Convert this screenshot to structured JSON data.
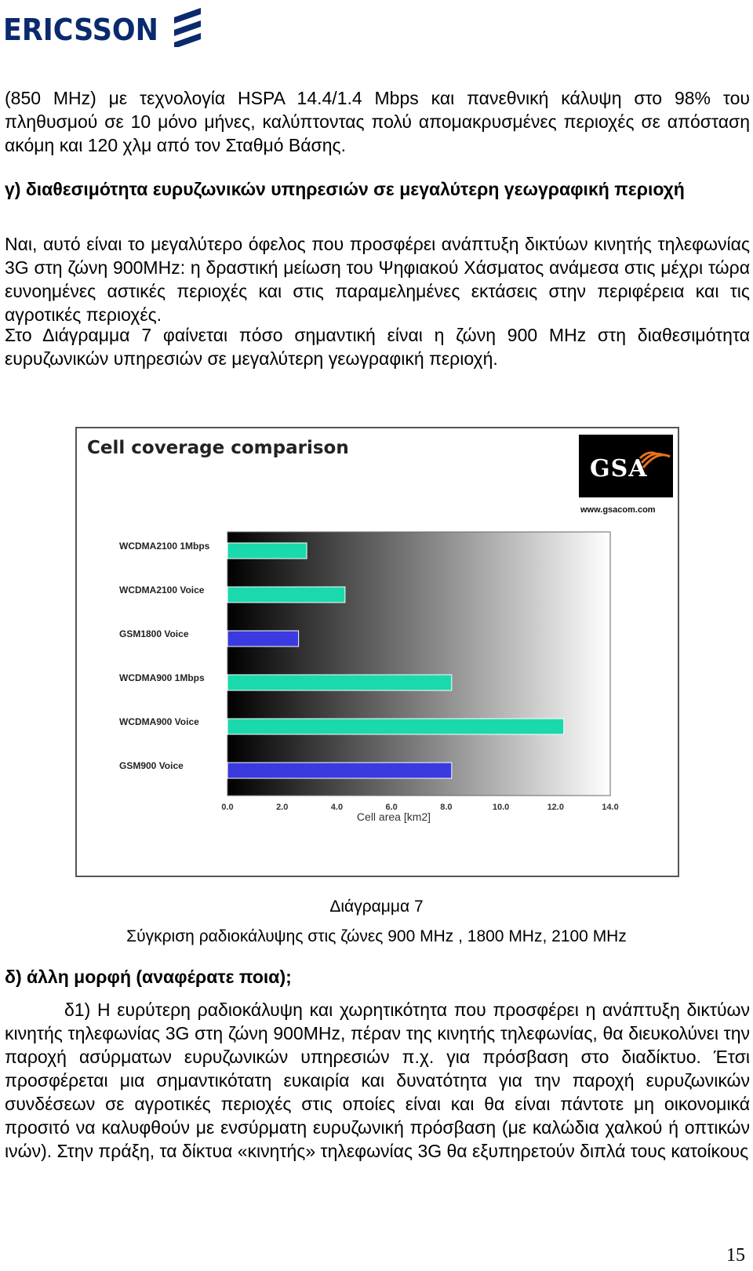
{
  "header": {
    "logo_text": "ERICSSON"
  },
  "paragraph1": "(850 MHz) με τεχνολογία HSPA 14.4/1.4 Mbps και πανεθνική κάλυψη στο 98% του πληθυσμού σε 10 μόνο μήνες, καλύπτοντας πολύ απομακρυσμένες περιοχές σε απόσταση ακόμη και 120 χλμ από τον Σταθμό Βάσης.",
  "heading_c": "γ) διαθεσιμότητα ευρυζωνικών υπηρεσιών σε μεγαλύτερη γεωγραφική περιοχή",
  "paragraph2": "Ναι, αυτό είναι το μεγαλύτερο όφελος που προσφέρει ανάπτυξη δικτύων κινητής τηλεφωνίας 3G στη ζώνη 900MHz: η δραστική μείωση του Ψηφιακού Χάσματος ανάμεσα στις μέχρι τώρα ευνοημένες αστικές περιοχές και στις παραμελημένες εκτάσεις στην περιφέρεια και τις αγροτικές περιοχές.",
  "paragraph3": "Στο Διάγραμμα 7 φαίνεται πόσο σημαντική είναι η ζώνη 900 MHz στη διαθεσιμότητα ευρυζωνικών υπηρεσιών σε μεγαλύτερη γεωγραφική περιοχή.",
  "figure": {
    "gsa_logo": "GSA",
    "gsa_url": "www.gsacom.com",
    "caption_number": "Διάγραμμα 7",
    "caption_text": "Σύγκριση ραδιοκάλυψης στις ζώνες 900 MHz , 1800 MHz, 2100 MHz"
  },
  "chart_data": {
    "type": "bar",
    "orientation": "horizontal",
    "title": "Cell coverage comparison",
    "xlabel": "Cell area [km2]",
    "ylabel": "",
    "xlim": [
      0,
      14
    ],
    "x_ticks": [
      "0.0",
      "2.0",
      "4.0",
      "6.0",
      "8.0",
      "10.0",
      "12.0",
      "14.0"
    ],
    "categories": [
      "WCDMA2100 1Mbps",
      "WCDMA2100 Voice",
      "GSM1800 Voice",
      "WCDMA900 1Mbps",
      "WCDMA900 Voice",
      "GSM900 Voice"
    ],
    "values": [
      2.9,
      4.3,
      2.6,
      8.2,
      12.3,
      8.2
    ],
    "bar_colors": [
      "#1ad9ac",
      "#1ad9ac",
      "#3a3ae0",
      "#1ad9ac",
      "#1ad9ac",
      "#3a3ae0"
    ],
    "grid": false,
    "legend": "none"
  },
  "heading_d": "δ) άλλη μορφή (αναφέρατε ποια);",
  "paragraph4": "δ1) Η ευρύτερη ραδιοκάλυψη και χωρητικότητα που προσφέρει η ανάπτυξη δικτύων κινητής τηλεφωνίας 3G στη ζώνη 900MHz, πέραν της κινητής τηλεφωνίας, θα διευκολύνει την παροχή ασύρματων ευρυζωνικών υπηρεσιών π.χ. για πρόσβαση στο διαδίκτυο. Έτσι προσφέρεται μια σημαντικότατη ευκαιρία και δυνατότητα για την παροχή ευρυζωνικών συνδέσεων σε αγροτικές περιοχές στις οποίες είναι και θα είναι πάντοτε μη οικονομικά προσιτό να καλυφθούν με ενσύρματη ευρυζωνική πρόσβαση (με καλώδια χαλκού ή οπτικών ινών). Στην πράξη, τα δίκτυα «κινητής» τηλεφωνίας 3G θα εξυπηρετούν διπλά τους κατοίκους",
  "page_number": "15"
}
